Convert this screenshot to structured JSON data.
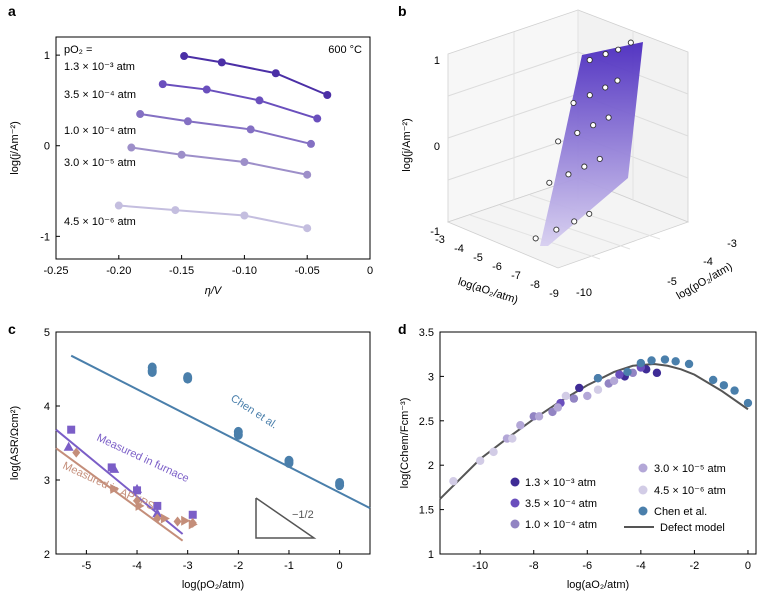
{
  "panel_labels": [
    "a",
    "b",
    "c",
    "d"
  ],
  "chart_data": [
    {
      "id": "a",
      "type": "line",
      "xlabel": "η/V",
      "ylabel": "log(j/Am⁻²)",
      "xlim": [
        -0.25,
        0
      ],
      "ylim": [
        -1.25,
        1.2
      ],
      "xticks": [
        "-0.25",
        "-0.20",
        "-0.15",
        "-0.10",
        "-0.05",
        "0"
      ],
      "xtick_values": [
        -0.25,
        -0.2,
        -0.15,
        -0.1,
        -0.05,
        0
      ],
      "yticks": [
        "-1",
        "0",
        "1"
      ],
      "ytick_values": [
        -1,
        0,
        1
      ],
      "temperature_label": "600 °C",
      "legend_title": "pO₂ =",
      "series": [
        {
          "name": "1.3 × 10⁻³ atm",
          "color": "#4b2fa6",
          "x": [
            -0.148,
            -0.118,
            -0.075,
            -0.034
          ],
          "y": [
            0.99,
            0.92,
            0.8,
            0.56
          ]
        },
        {
          "name": "3.5 × 10⁻⁴ atm",
          "color": "#6a4fbd",
          "x": [
            -0.165,
            -0.13,
            -0.088,
            -0.042
          ],
          "y": [
            0.68,
            0.62,
            0.5,
            0.3
          ]
        },
        {
          "name": "1.0 × 10⁻⁴ atm",
          "color": "#8470c3",
          "x": [
            -0.183,
            -0.145,
            -0.095,
            -0.047
          ],
          "y": [
            0.35,
            0.27,
            0.18,
            0.02
          ]
        },
        {
          "name": "3.0 × 10⁻⁵ atm",
          "color": "#9d8fc9",
          "x": [
            -0.19,
            -0.15,
            -0.1,
            -0.05
          ],
          "y": [
            -0.02,
            -0.1,
            -0.18,
            -0.32
          ]
        },
        {
          "name": "4.5 × 10⁻⁶ atm",
          "color": "#c4bedf",
          "x": [
            -0.2,
            -0.155,
            -0.1,
            -0.05
          ],
          "y": [
            -0.66,
            -0.71,
            -0.77,
            -0.91
          ]
        }
      ]
    },
    {
      "id": "b",
      "type": "scatter",
      "subtype": "surface3d",
      "zlabel": "log(j/Am⁻²)",
      "xlabel": "log(aO₂/atm)",
      "ylabel": "log(pO₂/atm)",
      "zticks": [
        "-1",
        "0",
        "1"
      ],
      "xticks": [
        "-3",
        "-4",
        "-5",
        "-6",
        "-7",
        "-8",
        "-9",
        "-10"
      ],
      "yticks": [
        "-3",
        "-4",
        "-5"
      ],
      "points": [
        {
          "a": -3.0,
          "p": -3.0,
          "z": 1.05
        },
        {
          "a": -3.3,
          "p": -3.4,
          "z": 1.0
        },
        {
          "a": -3.6,
          "p": -3.8,
          "z": 0.98
        },
        {
          "a": -4.0,
          "p": -4.3,
          "z": 0.95
        },
        {
          "a": -4.8,
          "p": -3.2,
          "z": 0.65
        },
        {
          "a": -5.0,
          "p": -3.6,
          "z": 0.6
        },
        {
          "a": -5.3,
          "p": -4.1,
          "z": 0.55
        },
        {
          "a": -5.8,
          "p": -4.6,
          "z": 0.5
        },
        {
          "a": -6.2,
          "p": -3.3,
          "z": 0.25
        },
        {
          "a": -6.5,
          "p": -3.8,
          "z": 0.2
        },
        {
          "a": -6.9,
          "p": -4.3,
          "z": 0.15
        },
        {
          "a": -7.4,
          "p": -4.9,
          "z": 0.1
        },
        {
          "a": -7.6,
          "p": -3.4,
          "z": -0.2
        },
        {
          "a": -7.9,
          "p": -3.9,
          "z": -0.25
        },
        {
          "a": -8.3,
          "p": -4.4,
          "z": -0.3
        },
        {
          "a": -8.8,
          "p": -5.0,
          "z": -0.35
        },
        {
          "a": -9.4,
          "p": -3.5,
          "z": -0.8
        },
        {
          "a": -9.6,
          "p": -4.0,
          "z": -0.85
        },
        {
          "a": -9.8,
          "p": -4.6,
          "z": -0.9
        },
        {
          "a": -10.0,
          "p": -5.3,
          "z": -0.95
        }
      ]
    },
    {
      "id": "c",
      "type": "scatter",
      "xlabel": "log(pO₂/atm)",
      "ylabel": "log(ASR/Ωcm²)",
      "xlim": [
        -5.6,
        0.6
      ],
      "ylim": [
        2,
        5
      ],
      "xticks": [
        "-5",
        "-4",
        "-3",
        "-2",
        "-1",
        "0"
      ],
      "xtick_values": [
        -5,
        -4,
        -3,
        -2,
        -1,
        0
      ],
      "yticks": [
        "2",
        "3",
        "4",
        "5"
      ],
      "ytick_values": [
        2,
        3,
        4,
        5
      ],
      "slope_label": "−1/2",
      "series": [
        {
          "name": "Chen et al.",
          "color": "#4a7fab",
          "marker": "circle",
          "x": [
            -3.7,
            -3.7,
            -3.7,
            -3.0,
            -3.0,
            -2.0,
            -2.0,
            -1.0,
            -1.0,
            0.0,
            0.0
          ],
          "y": [
            4.52,
            4.48,
            4.46,
            4.39,
            4.37,
            3.65,
            3.61,
            3.26,
            3.23,
            2.96,
            2.93
          ],
          "fit_x": [
            -5.3,
            0.6
          ],
          "fit_y": [
            4.68,
            2.62
          ]
        },
        {
          "name": "Measured in furnace",
          "color": "#7b5ec7",
          "marker": "square",
          "x": [
            -5.3,
            -4.5,
            -4.0,
            -3.6,
            -2.9
          ],
          "y": [
            3.68,
            3.17,
            2.86,
            2.65,
            2.53
          ],
          "fit_x": [
            -5.6,
            -3.1
          ],
          "fit_y": [
            3.68,
            2.27
          ]
        },
        {
          "name": "Measured in furnace",
          "color": "#7b5ec7",
          "marker": "triangle",
          "x": [
            -5.35,
            -4.45,
            -4.0,
            -3.6
          ],
          "y": [
            3.45,
            3.15,
            2.88,
            2.55
          ],
          "fit_x": [],
          "fit_y": []
        },
        {
          "name": "Measured in APXPS",
          "color": "#c48e7a",
          "marker": "diamond",
          "x": [
            -5.2,
            -4.0,
            -3.6,
            -3.2,
            -2.9
          ],
          "y": [
            3.37,
            2.72,
            2.48,
            2.44,
            2.42
          ],
          "fit_x": [
            -5.6,
            -3.1
          ],
          "fit_y": [
            3.43,
            2.18
          ]
        },
        {
          "name": "Measured in APXPS",
          "color": "#c48e7a",
          "marker": "triangle-right",
          "x": [
            -4.45,
            -3.95,
            -3.45,
            -3.05,
            -2.9
          ],
          "y": [
            2.88,
            2.65,
            2.48,
            2.45,
            2.4
          ],
          "fit_x": [],
          "fit_y": []
        }
      ],
      "line_labels": [
        "Chen et al.",
        "Measured in furnace",
        "Measured in APXPS"
      ]
    },
    {
      "id": "d",
      "type": "scatter",
      "xlabel": "log(aO₂/atm)",
      "ylabel": "log(Cchem/Fcm⁻³)",
      "xlim": [
        -11.5,
        0.3
      ],
      "ylim": [
        1,
        3.5
      ],
      "xticks": [
        "-10",
        "-8",
        "-6",
        "-4",
        "-2",
        "0"
      ],
      "xtick_values": [
        -10,
        -8,
        -6,
        -4,
        -2,
        0
      ],
      "yticks": [
        "1",
        "1.5",
        "2",
        "2.5",
        "3",
        "3.5"
      ],
      "ytick_values": [
        1,
        1.5,
        2,
        2.5,
        3,
        3.5
      ],
      "defect_model": {
        "name": "Defect model",
        "color": "#555555",
        "x": [
          -11.5,
          -10,
          -9,
          -8,
          -7,
          -6,
          -5,
          -4.3,
          -3.5,
          -3,
          -2.5,
          -2,
          -1,
          0
        ],
        "y": [
          1.62,
          2.07,
          2.3,
          2.52,
          2.72,
          2.9,
          3.05,
          3.12,
          3.14,
          3.12,
          3.08,
          3.02,
          2.84,
          2.63
        ]
      },
      "series": [
        {
          "name": "1.3 × 10⁻³ atm",
          "color": "#3f2c96",
          "x": [
            -6.3,
            -4.6,
            -3.8,
            -3.4
          ],
          "y": [
            2.87,
            3.0,
            3.08,
            3.04
          ]
        },
        {
          "name": "3.5 × 10⁻⁴ atm",
          "color": "#6a4fbd",
          "x": [
            -7.0,
            -5.6,
            -4.8,
            -4.0
          ],
          "y": [
            2.7,
            2.98,
            3.02,
            3.1
          ]
        },
        {
          "name": "1.0 × 10⁻⁴ atm",
          "color": "#9284c3",
          "x": [
            -8.0,
            -7.3,
            -6.5,
            -5.2,
            -4.3
          ],
          "y": [
            2.55,
            2.6,
            2.75,
            2.92,
            3.04
          ]
        },
        {
          "name": "3.0 × 10⁻⁵ atm",
          "color": "#b3a7d7",
          "x": [
            -9.0,
            -8.5,
            -7.8,
            -7.1,
            -6.0,
            -5.0
          ],
          "y": [
            2.3,
            2.45,
            2.55,
            2.65,
            2.78,
            2.95
          ]
        },
        {
          "name": "4.5 × 10⁻⁶ atm",
          "color": "#d2cce6",
          "x": [
            -11.0,
            -10.0,
            -9.5,
            -8.8,
            -6.8,
            -5.6
          ],
          "y": [
            1.82,
            2.05,
            2.15,
            2.3,
            2.78,
            2.85
          ]
        },
        {
          "name": "Chen et al.",
          "color": "#4a7fab",
          "x": [
            -5.6,
            -4.5,
            -4.0,
            -3.6,
            -3.1,
            -2.7,
            -2.2,
            -1.3,
            -0.9,
            -0.5,
            0.0
          ],
          "y": [
            2.98,
            3.05,
            3.15,
            3.18,
            3.19,
            3.17,
            3.14,
            2.96,
            2.9,
            2.84,
            2.7
          ]
        }
      ],
      "legend_col1": [
        "1.3 × 10⁻³ atm",
        "3.5 × 10⁻⁴ atm",
        "1.0 × 10⁻⁴ atm"
      ],
      "legend_col2": [
        "3.0 × 10⁻⁵ atm",
        "4.5 × 10⁻⁶ atm",
        "Chen et al.",
        "Defect model"
      ]
    }
  ]
}
